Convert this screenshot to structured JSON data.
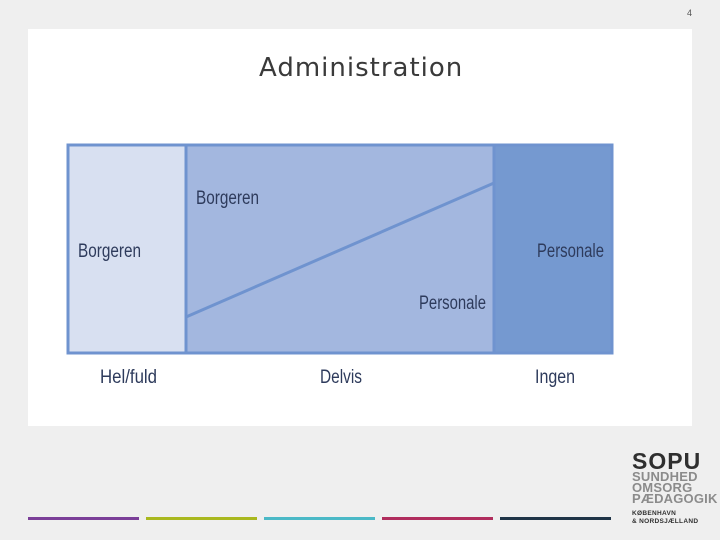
{
  "page_number": "4",
  "title": "Administration",
  "diagram": {
    "columns": [
      {
        "label": "Hel/fuld",
        "box_text": "Borgeren",
        "color": "#d8e0f1"
      },
      {
        "label": "Delvis",
        "upper_text": "Borgeren",
        "lower_text": "Personale",
        "color": "#a3b7df"
      },
      {
        "label": "Ingen",
        "box_text": "Personale",
        "color": "#7599d0"
      }
    ],
    "border_color": "#6f93cf",
    "text_color": "#2e3b5c"
  },
  "footer_bar_colors": [
    "#7b3f98",
    "#a9b81f",
    "#4bb9c7",
    "#b02d5d",
    "#1f3447"
  ],
  "logo": {
    "line1": "SOPU",
    "line2": "SUNDHED",
    "line3": "OMSORG",
    "line4": "PÆDAGOGIK",
    "line5": "KØBENHAVN",
    "line6": "& NORDSJÆLLAND"
  }
}
